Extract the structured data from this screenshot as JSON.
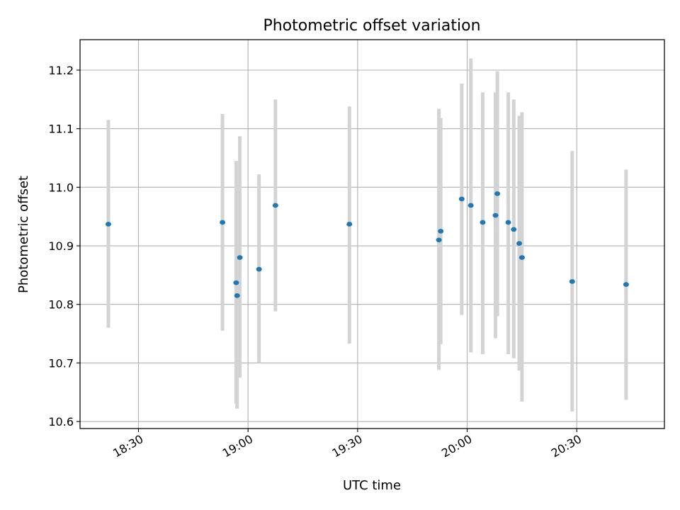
{
  "chart_data": {
    "type": "scatter",
    "title": "Photometric offset variation",
    "xlabel": "UTC time",
    "ylabel": "Photometric offset",
    "grid": true,
    "xlim": [
      "18:14",
      "20:54"
    ],
    "ylim": [
      10.588,
      11.252
    ],
    "xticks": [
      "18:30",
      "19:00",
      "19:30",
      "20:00",
      "20:30"
    ],
    "yticks": [
      "10.6",
      "10.7",
      "10.8",
      "10.9",
      "11.0",
      "11.1",
      "11.2"
    ],
    "colors": {
      "point": "#1f77b4",
      "errorbar": "#d3d3d3",
      "grid": "#b0b0b0"
    },
    "points": [
      {
        "x": "18:21:45",
        "y": 10.937,
        "ylo": 10.76,
        "yhi": 11.115
      },
      {
        "x": "18:53:00",
        "y": 10.94,
        "ylo": 10.755,
        "yhi": 11.125
      },
      {
        "x": "18:56:45",
        "y": 10.837,
        "ylo": 10.63,
        "yhi": 11.045
      },
      {
        "x": "18:57:00",
        "y": 10.815,
        "ylo": 10.622,
        "yhi": 11.008
      },
      {
        "x": "18:57:45",
        "y": 10.88,
        "ylo": 10.675,
        "yhi": 11.087
      },
      {
        "x": "19:03:00",
        "y": 10.86,
        "ylo": 10.7,
        "yhi": 11.022
      },
      {
        "x": "19:07:30",
        "y": 10.969,
        "ylo": 10.788,
        "yhi": 11.15
      },
      {
        "x": "19:27:45",
        "y": 10.937,
        "ylo": 10.733,
        "yhi": 11.138
      },
      {
        "x": "19:52:15",
        "y": 10.91,
        "ylo": 10.688,
        "yhi": 11.134
      },
      {
        "x": "19:52:45",
        "y": 10.925,
        "ylo": 10.732,
        "yhi": 11.118
      },
      {
        "x": "19:58:30",
        "y": 10.98,
        "ylo": 10.782,
        "yhi": 11.177
      },
      {
        "x": "20:01:00",
        "y": 10.969,
        "ylo": 10.718,
        "yhi": 11.22
      },
      {
        "x": "20:04:15",
        "y": 10.94,
        "ylo": 10.715,
        "yhi": 11.162
      },
      {
        "x": "20:07:45",
        "y": 10.952,
        "ylo": 10.742,
        "yhi": 11.162
      },
      {
        "x": "20:08:15",
        "y": 10.989,
        "ylo": 10.78,
        "yhi": 11.198
      },
      {
        "x": "20:11:15",
        "y": 10.94,
        "ylo": 10.715,
        "yhi": 11.162
      },
      {
        "x": "20:12:45",
        "y": 10.928,
        "ylo": 10.708,
        "yhi": 11.15
      },
      {
        "x": "20:14:15",
        "y": 10.904,
        "ylo": 10.687,
        "yhi": 11.122
      },
      {
        "x": "20:15:00",
        "y": 10.88,
        "ylo": 10.634,
        "yhi": 11.128
      },
      {
        "x": "20:28:45",
        "y": 10.839,
        "ylo": 10.617,
        "yhi": 11.062
      },
      {
        "x": "20:43:30",
        "y": 10.834,
        "ylo": 10.637,
        "yhi": 11.03
      }
    ]
  }
}
